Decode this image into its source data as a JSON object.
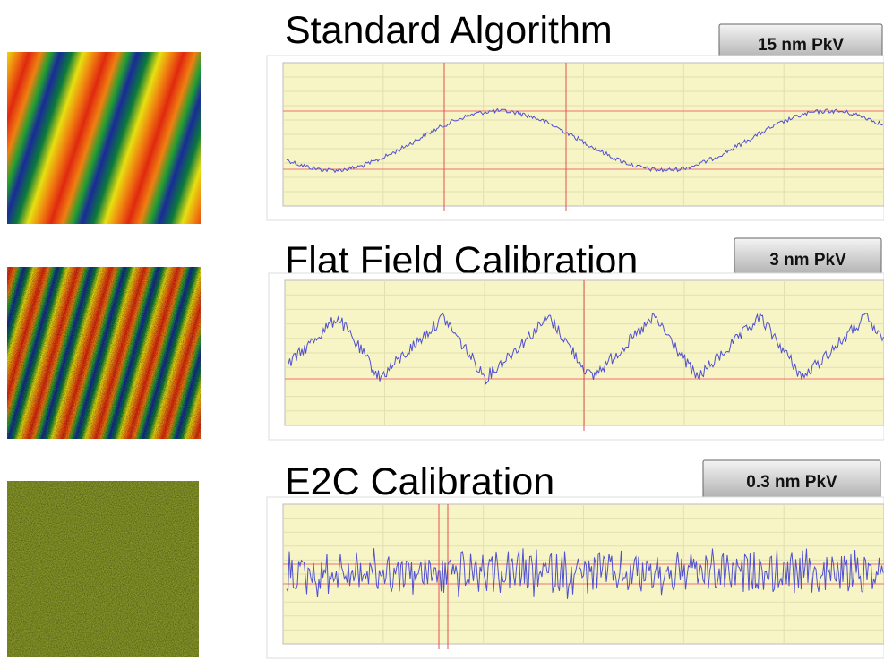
{
  "panels": [
    {
      "title": "Standard Algorithm",
      "badge": "15 nm PkV"
    },
    {
      "title": "Flat Field Calibration",
      "badge": "3 nm PkV"
    },
    {
      "title": "E2C Calibration",
      "badge": "0.3 nm PkV"
    }
  ]
}
